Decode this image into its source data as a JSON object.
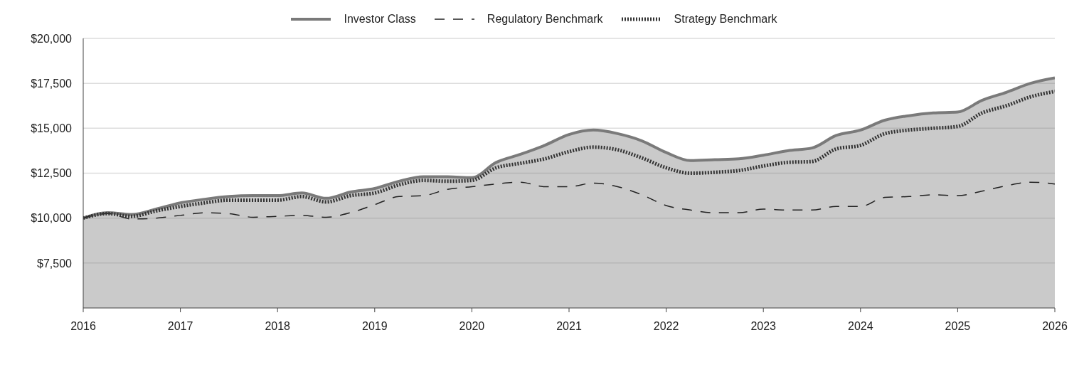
{
  "chart_data": {
    "type": "line",
    "x": [
      2016,
      2016.25,
      2016.5,
      2016.75,
      2017,
      2017.25,
      2017.5,
      2017.75,
      2018,
      2018.25,
      2018.5,
      2018.75,
      2019,
      2019.25,
      2019.5,
      2019.75,
      2020,
      2020.25,
      2020.5,
      2020.75,
      2021,
      2021.25,
      2021.5,
      2021.75,
      2022,
      2022.25,
      2022.5,
      2022.75,
      2023,
      2023.25,
      2023.5,
      2023.75,
      2024,
      2024.25,
      2024.5,
      2024.75,
      2025,
      2025.25,
      2025.5,
      2025.75,
      2026
    ],
    "series": [
      {
        "name": "Investor Class",
        "type": "area",
        "color": "#7a7a7a",
        "line_style": "solid",
        "values": [
          10000,
          10300,
          10200,
          10500,
          10850,
          11050,
          11200,
          11250,
          11250,
          11400,
          11100,
          11450,
          11650,
          12050,
          12300,
          12300,
          12250,
          13100,
          13550,
          14050,
          14650,
          14900,
          14700,
          14300,
          13650,
          13200,
          13250,
          13300,
          13500,
          13750,
          13900,
          14600,
          14900,
          15450,
          15700,
          15850,
          15900,
          16550,
          17000,
          17500,
          17800
        ]
      },
      {
        "name": "Regulatory Benchmark",
        "color": "#222222",
        "line_style": "dashed",
        "values": [
          10000,
          10250,
          9950,
          10000,
          10150,
          10300,
          10250,
          10050,
          10100,
          10150,
          10050,
          10300,
          10750,
          11200,
          11250,
          11600,
          11750,
          11900,
          12000,
          11750,
          11750,
          11950,
          11750,
          11300,
          10700,
          10450,
          10300,
          10300,
          10500,
          10450,
          10450,
          10650,
          10650,
          11150,
          11200,
          11300,
          11250,
          11500,
          11800,
          12000,
          11900
        ]
      },
      {
        "name": "Strategy Benchmark",
        "color": "#333333",
        "line_style": "dotted",
        "values": [
          10000,
          10250,
          10100,
          10400,
          10650,
          10850,
          11000,
          11000,
          11000,
          11200,
          10900,
          11250,
          11400,
          11850,
          12100,
          12050,
          12100,
          12800,
          13050,
          13300,
          13700,
          13950,
          13800,
          13350,
          12800,
          12500,
          12550,
          12650,
          12900,
          13100,
          13150,
          13850,
          14050,
          14700,
          14900,
          15000,
          15100,
          15850,
          16250,
          16750,
          17050
        ]
      }
    ],
    "xlim": [
      2016,
      2026
    ],
    "xticks": [
      2016,
      2017,
      2018,
      2019,
      2020,
      2021,
      2022,
      2023,
      2024,
      2025,
      2026
    ],
    "ylim": [
      5000,
      20000
    ],
    "yticks": [
      {
        "value": 7500,
        "label": "$7,500"
      },
      {
        "value": 10000,
        "label": "$10,000"
      },
      {
        "value": 12500,
        "label": "$12,500"
      },
      {
        "value": 15000,
        "label": "$15,000"
      },
      {
        "value": 17500,
        "label": "$17,500"
      },
      {
        "value": 20000,
        "label": "$20,000"
      }
    ],
    "grid": "y",
    "legend": "top"
  }
}
